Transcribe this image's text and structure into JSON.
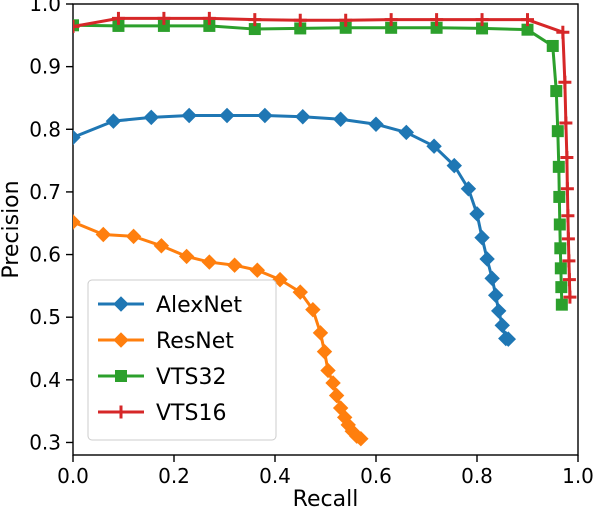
{
  "chart_data": {
    "type": "line",
    "title": "",
    "xlabel": "Recall",
    "ylabel": "Precision",
    "xlim": [
      0,
      1.0
    ],
    "ylim": [
      0.28,
      1.0
    ],
    "xticks": [
      "0.0",
      "0.2",
      "0.4",
      "0.6",
      "0.8",
      "1.0"
    ],
    "yticks": [
      "0.3",
      "0.4",
      "0.5",
      "0.6",
      "0.7",
      "0.8",
      "0.9",
      "1.0"
    ],
    "grid": false,
    "legend_position": "bottom-left",
    "series": [
      {
        "name": "AlexNet",
        "color": "#1f77b4",
        "marker": "diamond",
        "x": [
          0.0,
          0.08,
          0.155,
          0.23,
          0.305,
          0.38,
          0.455,
          0.53,
          0.6,
          0.66,
          0.715,
          0.755,
          0.783,
          0.8,
          0.81,
          0.82,
          0.83,
          0.837,
          0.843,
          0.85,
          0.857,
          0.862
        ],
        "y": [
          0.787,
          0.813,
          0.819,
          0.822,
          0.822,
          0.822,
          0.82,
          0.816,
          0.808,
          0.795,
          0.773,
          0.742,
          0.705,
          0.665,
          0.627,
          0.593,
          0.562,
          0.535,
          0.51,
          0.487,
          0.466,
          0.465
        ]
      },
      {
        "name": "ResNet",
        "color": "#ff7f0e",
        "marker": "diamond",
        "x": [
          0.0,
          0.06,
          0.12,
          0.175,
          0.225,
          0.27,
          0.32,
          0.365,
          0.41,
          0.45,
          0.475,
          0.49,
          0.498,
          0.505,
          0.515,
          0.522,
          0.53,
          0.538,
          0.545,
          0.553,
          0.562,
          0.57
        ],
        "y": [
          0.652,
          0.632,
          0.629,
          0.614,
          0.597,
          0.588,
          0.583,
          0.575,
          0.56,
          0.54,
          0.512,
          0.475,
          0.445,
          0.415,
          0.395,
          0.375,
          0.355,
          0.34,
          0.328,
          0.318,
          0.31,
          0.306
        ]
      },
      {
        "name": "VTS32",
        "color": "#2ca02c",
        "marker": "square",
        "x": [
          0.0,
          0.09,
          0.18,
          0.27,
          0.36,
          0.45,
          0.54,
          0.63,
          0.72,
          0.81,
          0.9,
          0.95,
          0.957,
          0.96,
          0.962,
          0.963,
          0.964,
          0.965,
          0.966,
          0.967,
          0.968
        ],
        "y": [
          0.966,
          0.965,
          0.965,
          0.965,
          0.96,
          0.961,
          0.962,
          0.962,
          0.962,
          0.961,
          0.959,
          0.933,
          0.861,
          0.797,
          0.74,
          0.692,
          0.648,
          0.61,
          0.578,
          0.548,
          0.52
        ]
      },
      {
        "name": "VTS16",
        "color": "#d62728",
        "marker": "plus",
        "x": [
          0.0,
          0.09,
          0.18,
          0.27,
          0.36,
          0.45,
          0.54,
          0.63,
          0.72,
          0.81,
          0.9,
          0.97,
          0.974,
          0.976,
          0.978,
          0.979,
          0.98,
          0.981,
          0.982,
          0.983,
          0.984
        ],
        "y": [
          0.964,
          0.977,
          0.977,
          0.977,
          0.975,
          0.974,
          0.974,
          0.975,
          0.975,
          0.975,
          0.975,
          0.955,
          0.875,
          0.81,
          0.755,
          0.705,
          0.662,
          0.625,
          0.59,
          0.56,
          0.532
        ]
      }
    ]
  }
}
